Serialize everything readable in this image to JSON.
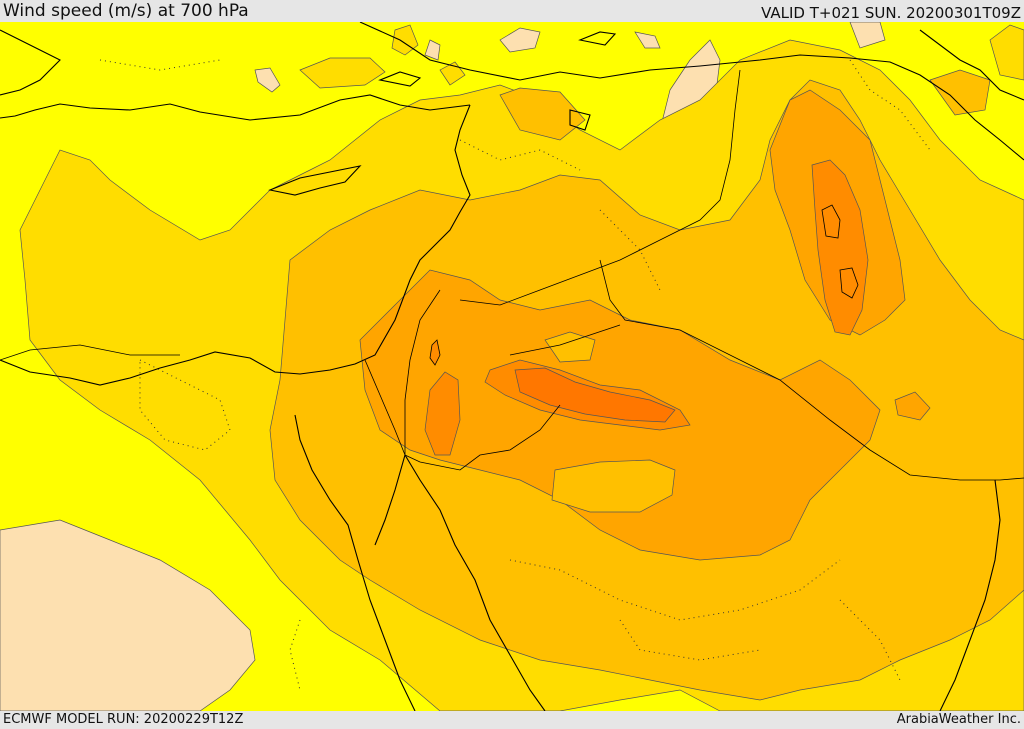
{
  "header": {
    "title": "Wind speed (m/s) at 700 hPa",
    "valid_time": "VALID T+021 SUN. 20200301T09Z"
  },
  "footer": {
    "model_run": "ECMWF MODEL RUN: 20200229T12Z",
    "credit": "ArabiaWeather Inc."
  },
  "map": {
    "colors": {
      "calm": "#fde0b0",
      "band1": "#ffff00",
      "band2": "#ffdd00",
      "band3": "#ffc000",
      "band4": "#ffa500",
      "band5": "#ff8c00",
      "band6": "#ff7700",
      "boundary": "#000000",
      "contour": "#555555"
    }
  }
}
